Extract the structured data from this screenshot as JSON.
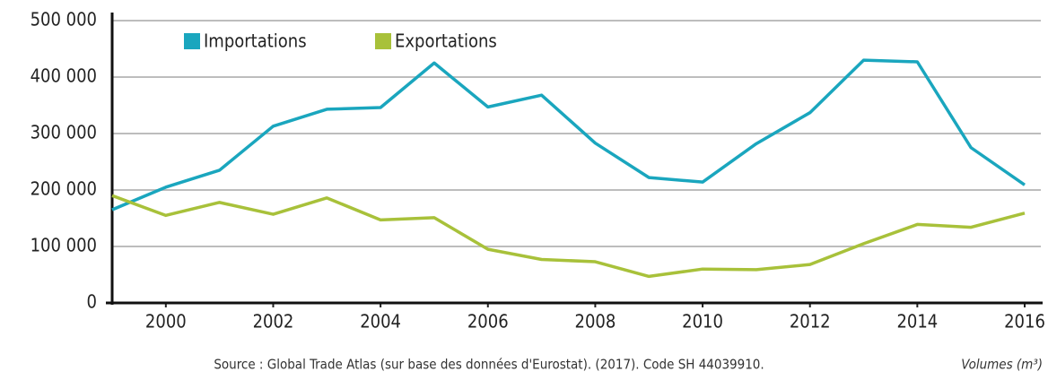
{
  "chart_data": {
    "type": "line",
    "x": [
      1999,
      2000,
      2001,
      2002,
      2003,
      2004,
      2005,
      2006,
      2007,
      2008,
      2009,
      2010,
      2011,
      2012,
      2013,
      2014,
      2015,
      2016
    ],
    "series": [
      {
        "name": "Importations",
        "color": "#1aa6be",
        "values": [
          165000,
          205000,
          235000,
          313000,
          343000,
          346000,
          425000,
          347000,
          368000,
          283000,
          222000,
          214000,
          282000,
          337000,
          430000,
          427000,
          275000,
          209000
        ]
      },
      {
        "name": "Exportations",
        "color": "#a8c13a",
        "values": [
          190000,
          155000,
          178000,
          157000,
          186000,
          147000,
          151000,
          95000,
          77000,
          73000,
          47000,
          60000,
          59000,
          68000,
          105000,
          139000,
          134000,
          159000
        ]
      }
    ],
    "xlim": [
      1999,
      2016
    ],
    "xticks": [
      2000,
      2002,
      2004,
      2006,
      2008,
      2010,
      2012,
      2014,
      2016
    ],
    "ylim": [
      0,
      500000
    ],
    "yticks": [
      0,
      {
        "value": 100000,
        "label": "100 000"
      },
      {
        "value": 200000,
        "label": "200 000"
      },
      {
        "value": 300000,
        "label": "300 000"
      },
      {
        "value": 400000,
        "label": "400 000"
      },
      {
        "value": 500000,
        "label": "500 000"
      }
    ],
    "grid": true,
    "legend": "top",
    "source": "Source : Global Trade Atlas (sur base des données d'Eurostat). (2017). Code SH 44039910.",
    "unit_note": "Volumes (m³)"
  }
}
